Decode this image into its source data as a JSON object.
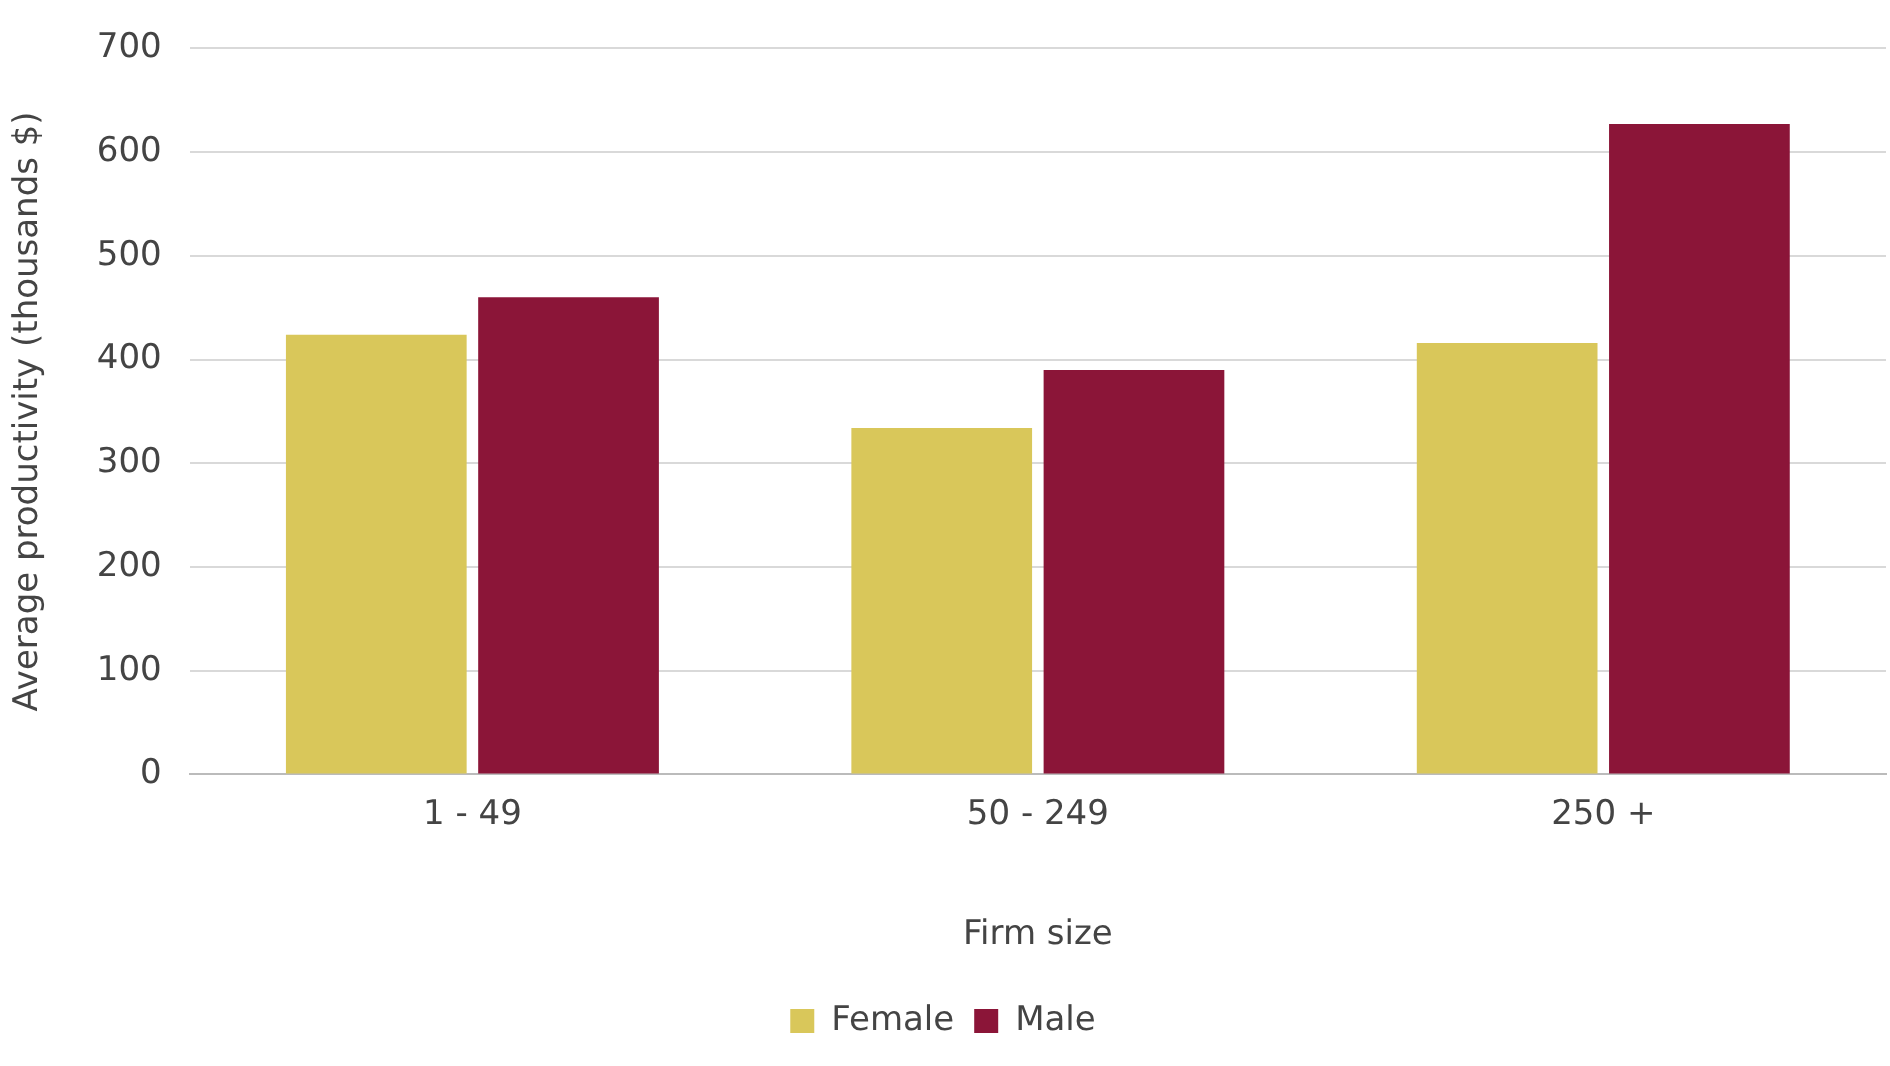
{
  "chart_data": {
    "type": "bar",
    "xlabel": "Firm size",
    "ylabel": "Average productivity (thousands $)",
    "categories": [
      "1 - 49",
      "50 - 249",
      "250 +"
    ],
    "series": [
      {
        "name": "Female",
        "color": "#d9c75a",
        "values": [
          424,
          334,
          416
        ]
      },
      {
        "name": "Male",
        "color": "#8b1538",
        "values": [
          460,
          390,
          627
        ]
      }
    ],
    "ylim": [
      0,
      700
    ],
    "yticks": [
      0,
      100,
      200,
      300,
      400,
      500,
      600,
      700
    ],
    "grid": "y",
    "legend": "bottom"
  }
}
